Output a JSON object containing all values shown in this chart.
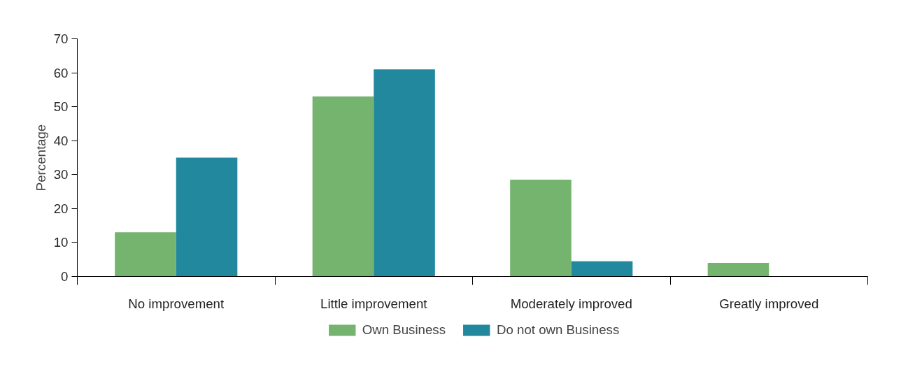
{
  "chart_data": {
    "type": "bar",
    "ylabel": "Percentage",
    "categories": [
      "No improvement",
      "Little improvement",
      "Moderately improved",
      "Greatly improved"
    ],
    "series": [
      {
        "name": "Own Business",
        "color": "#75b46f",
        "values": [
          13,
          53,
          28.5,
          4
        ]
      },
      {
        "name": "Do not own Business",
        "color": "#21889e",
        "values": [
          35,
          61,
          4.5,
          0
        ]
      }
    ],
    "ylim": [
      0,
      70
    ],
    "yticks": [
      0,
      10,
      20,
      30,
      40,
      50,
      60,
      70
    ],
    "grid": false,
    "legend": "bottom"
  }
}
